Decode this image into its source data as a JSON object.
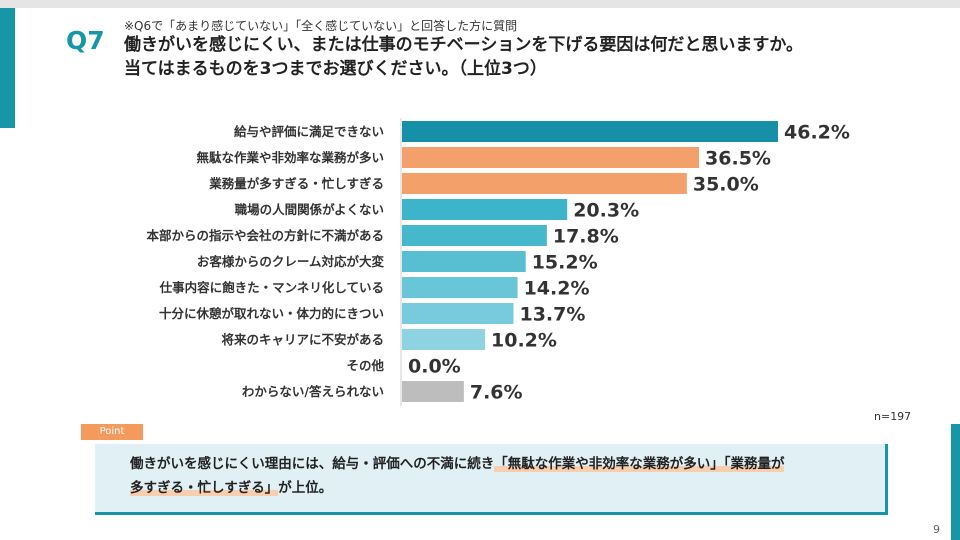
{
  "question": {
    "number": "Q7",
    "note": "※Q6で「あまり感じていない」「全く感じていない」と回答した方に質問",
    "title_line1": "働きがいを感じにくい、または仕事のモチベーションを下げる要因は何だと思いますか。",
    "title_line2": "当てはまるものを3つまでお選びください。（上位3つ）"
  },
  "chart_data": {
    "type": "bar",
    "orientation": "horizontal",
    "categories": [
      "給与や評価に満足できない",
      "無駄な作業や非効率な業務が多い",
      "業務量が多すぎる・忙しすぎる",
      "職場の人間関係がよくない",
      "本部からの指示や会社の方針に不満がある",
      "お客様からのクレーム対応が大変",
      "仕事内容に飽きた・マンネリ化している",
      "十分に休憩が取れない・体力的にきつい",
      "将来のキャリアに不安がある",
      "その他",
      "わからない/答えられない"
    ],
    "values": [
      46.2,
      36.5,
      35.0,
      20.3,
      17.8,
      15.2,
      14.2,
      13.7,
      10.2,
      0.0,
      7.6
    ],
    "value_labels": [
      "46.2%",
      "36.5%",
      "35.0%",
      "20.3%",
      "17.8%",
      "15.2%",
      "14.2%",
      "13.7%",
      "10.2%",
      "0.0%",
      "7.6%"
    ],
    "colors": [
      "#1590a6",
      "#f3a06b",
      "#f3a06b",
      "#3db4c9",
      "#45b8cc",
      "#58bfd2",
      "#69c6d8",
      "#78cbdc",
      "#8dd3e2",
      "#a8dde8",
      "#bdbdbd"
    ],
    "xlim": [
      0,
      50
    ],
    "title": "",
    "xlabel": "",
    "ylabel": ""
  },
  "sample": "n=197",
  "point": {
    "tag": "Point",
    "text_a": "働きがいを感じにくい理由には、給与・評価への不満に続き",
    "text_hl1": "「無駄な作業や非効率な業務が多い」「業務量が",
    "text_hl2": "多すぎる・忙しすぎる」",
    "text_b": "が上位。"
  },
  "page_number": "9"
}
